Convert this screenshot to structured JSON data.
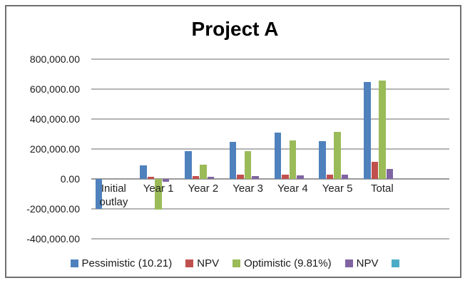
{
  "window": {
    "background_color": "#ffffff",
    "border_color": "#6f6f6f"
  },
  "chart_data": {
    "type": "bar",
    "title": "Project A",
    "categories": [
      "Initial outlay",
      "Year 1",
      "Year 2",
      "Year 3",
      "Year 4",
      "Year 5",
      "Total"
    ],
    "series": [
      {
        "name": "Pessimistic (10.21)",
        "color": "#4F81BD",
        "values": [
          -200000,
          91000,
          185000,
          250000,
          310000,
          254000,
          650000
        ]
      },
      {
        "name": "NPV",
        "color": "#C0504D",
        "values": [
          0,
          12000,
          21000,
          27000,
          30000,
          27000,
          116000
        ]
      },
      {
        "name": "Optimistic (9.81%)",
        "color": "#9BBB59",
        "values": [
          0,
          -205000,
          95000,
          184000,
          258000,
          313000,
          657000
        ]
      },
      {
        "name": "NPV",
        "color": "#8064A2",
        "values": [
          0,
          -18000,
          12000,
          20000,
          23000,
          30000,
          67000
        ]
      },
      {
        "name": "",
        "color": "#4BACC6",
        "values": [
          0,
          0,
          0,
          0,
          0,
          0,
          0
        ]
      }
    ],
    "y_axis": {
      "min": -400000,
      "max": 800000,
      "step": 200000,
      "ticks": [
        {
          "value": 800000,
          "label": "800,000.00"
        },
        {
          "value": 600000,
          "label": "600,000.00"
        },
        {
          "value": 400000,
          "label": "400,000.00"
        },
        {
          "value": 200000,
          "label": "200,000.00"
        },
        {
          "value": 0,
          "label": "0.00"
        },
        {
          "value": -200000,
          "label": "-200,000.00"
        },
        {
          "value": -400000,
          "label": "-400,000.00"
        }
      ]
    },
    "legend_position": "bottom",
    "grid": true,
    "gridline_color": "#b4b4b4",
    "zero_line_color": "#9a9a9a"
  }
}
